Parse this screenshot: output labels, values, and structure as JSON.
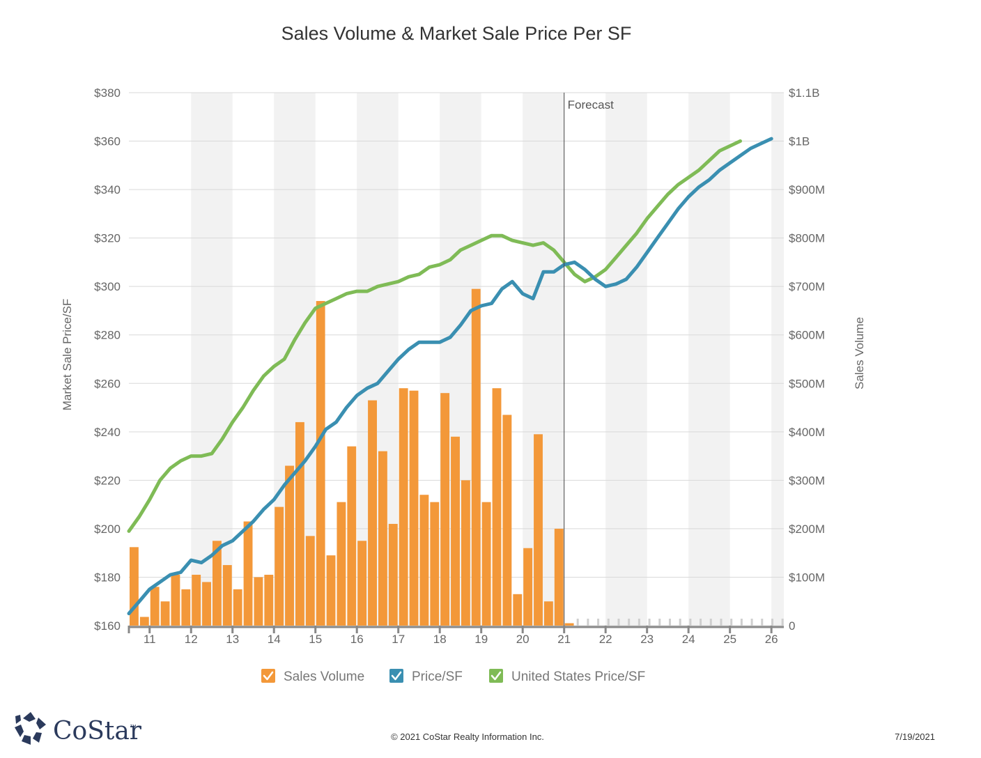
{
  "chart_data": {
    "type": "bar+line",
    "title": "Sales Volume & Market Sale Price Per SF",
    "y_left_label": "Market Sale Price/SF",
    "y_right_label": "Sales Volume",
    "y_left_ticks": [
      "$160",
      "$180",
      "$200",
      "$220",
      "$240",
      "$260",
      "$280",
      "$300",
      "$320",
      "$340",
      "$360",
      "$380"
    ],
    "y_left_values": [
      160,
      180,
      200,
      220,
      240,
      260,
      280,
      300,
      320,
      340,
      360,
      380
    ],
    "y_right_ticks": [
      "0",
      "$100M",
      "$200M",
      "$300M",
      "$400M",
      "$500M",
      "$600M",
      "$700M",
      "$800M",
      "$900M",
      "$1B",
      "$1.1B"
    ],
    "x_ticks": [
      "11",
      "12",
      "13",
      "14",
      "15",
      "16",
      "17",
      "18",
      "19",
      "20",
      "21",
      "22",
      "23",
      "24",
      "25",
      "26"
    ],
    "forecast_label": "Forecast",
    "forecast_start": 2021.0,
    "x_range": [
      2010.5,
      2026.3
    ],
    "ylim_left": [
      160,
      380
    ],
    "ylim_right_millions": [
      0,
      1100
    ],
    "shaded_years": [
      2012,
      2014,
      2016,
      2018,
      2020,
      2022,
      2024,
      2026
    ],
    "legend": [
      {
        "label": "Sales Volume",
        "color": "#f39839"
      },
      {
        "label": "Price/SF",
        "color": "#3a8fb1"
      },
      {
        "label": "United States Price/SF",
        "color": "#7fbb56"
      }
    ],
    "sales_volume_millions": {
      "x_start": 2010.5,
      "step": 0.25,
      "values": [
        162,
        18,
        80,
        50,
        105,
        75,
        105,
        90,
        175,
        125,
        75,
        215,
        100,
        105,
        245,
        330,
        420,
        185,
        670,
        145,
        255,
        370,
        175,
        465,
        360,
        210,
        490,
        485,
        270,
        255,
        480,
        390,
        300,
        695,
        255,
        490,
        435,
        65,
        160,
        395,
        50,
        200,
        5
      ]
    },
    "price_sf": {
      "x_start": 2010.5,
      "step": 0.25,
      "values": [
        165,
        170,
        175,
        178,
        181,
        182,
        187,
        186,
        189,
        193,
        195,
        199,
        203,
        208,
        212,
        218,
        223,
        228,
        234,
        241,
        244,
        250,
        255,
        258,
        260,
        265,
        270,
        274,
        277,
        277,
        277,
        279,
        284,
        290,
        292,
        293,
        299,
        302,
        297,
        295,
        306,
        306,
        309,
        310,
        307,
        303,
        300,
        301,
        303,
        308,
        314,
        320,
        326,
        332,
        337,
        341,
        344,
        348,
        351,
        354,
        357,
        359,
        361
      ]
    },
    "us_price_sf": {
      "x_start": 2010.5,
      "step": 0.25,
      "values": [
        199,
        205,
        212,
        220,
        225,
        228,
        230,
        230,
        231,
        237,
        244,
        250,
        257,
        263,
        267,
        270,
        278,
        285,
        291,
        293,
        295,
        297,
        298,
        298,
        300,
        301,
        302,
        304,
        305,
        308,
        309,
        311,
        315,
        317,
        319,
        321,
        321,
        319,
        318,
        317,
        318,
        315,
        310,
        305,
        302,
        304,
        307,
        312,
        317,
        322,
        328,
        333,
        338,
        342,
        345,
        348,
        352,
        356,
        358,
        360
      ]
    }
  },
  "footer": {
    "copyright": "© 2021 CoStar Realty Information Inc.",
    "date": "7/19/2021"
  },
  "logo": {
    "text": "CoStar",
    "tm": "™"
  }
}
